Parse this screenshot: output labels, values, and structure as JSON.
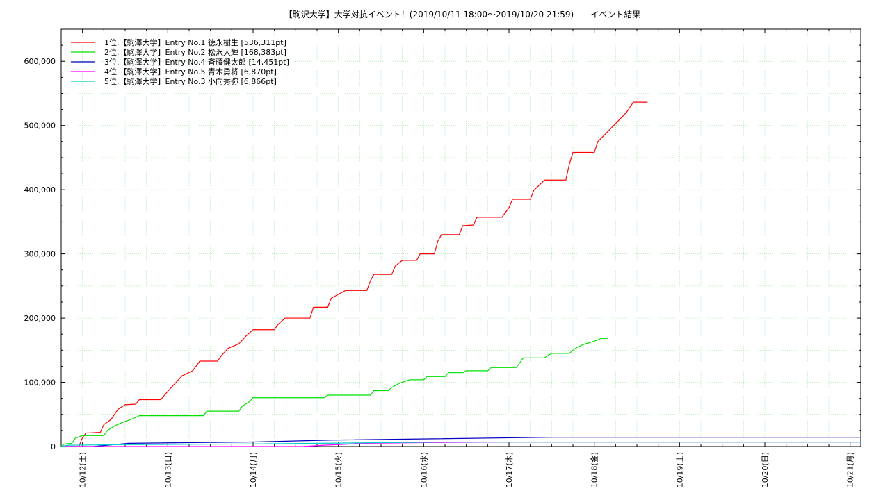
{
  "chart_data": {
    "type": "line",
    "title": "【駒沢大学】大学対抗イベント！(2019/10/11 18:00～2019/10/20 21:59)　　イベント結果",
    "xlabel": "",
    "ylabel": "",
    "x_ticks": [
      "10/12(土)",
      "10/13(日)",
      "10/14(月)",
      "10/15(火)",
      "10/16(水)",
      "10/17(木)",
      "10/18(金)",
      "10/19(土)",
      "10/20(日)",
      "10/21(月)"
    ],
    "y_ticks": [
      "0",
      "100,000",
      "200,000",
      "300,000",
      "400,000",
      "500,000",
      "600,000"
    ],
    "x_range": [
      "2019-10-11 18:00",
      "2019-10-21 03:00"
    ],
    "y_range": [
      0,
      650000
    ],
    "grid": true,
    "legend_position": "top-left",
    "series": [
      {
        "name": "1位.【駒澤大学】Entry No.1 徳永樹生 [536,311pt]",
        "color": "#ff0000",
        "points": [
          [
            "2019-10-11 18:00",
            0
          ],
          [
            "2019-10-11 23:00",
            0
          ],
          [
            "2019-10-12 00:00",
            14000
          ],
          [
            "2019-10-12 01:00",
            21000
          ],
          [
            "2019-10-12 05:00",
            22000
          ],
          [
            "2019-10-12 06:00",
            34000
          ],
          [
            "2019-10-12 08:00",
            42000
          ],
          [
            "2019-10-12 10:00",
            58000
          ],
          [
            "2019-10-12 12:00",
            65000
          ],
          [
            "2019-10-12 15:00",
            66000
          ],
          [
            "2019-10-12 16:00",
            73000
          ],
          [
            "2019-10-12 22:00",
            73000
          ],
          [
            "2019-10-13 00:00",
            86000
          ],
          [
            "2019-10-13 02:00",
            98000
          ],
          [
            "2019-10-13 04:00",
            110000
          ],
          [
            "2019-10-13 07:00",
            118000
          ],
          [
            "2019-10-13 09:00",
            133000
          ],
          [
            "2019-10-13 14:00",
            133000
          ],
          [
            "2019-10-13 15:00",
            141000
          ],
          [
            "2019-10-13 17:00",
            153000
          ],
          [
            "2019-10-13 20:00",
            160000
          ],
          [
            "2019-10-13 22:00",
            172000
          ],
          [
            "2019-10-14 00:00",
            182000
          ],
          [
            "2019-10-14 06:00",
            182000
          ],
          [
            "2019-10-14 07:00",
            190000
          ],
          [
            "2019-10-14 09:00",
            200000
          ],
          [
            "2019-10-14 16:00",
            200000
          ],
          [
            "2019-10-14 17:00",
            217000
          ],
          [
            "2019-10-14 21:00",
            217000
          ],
          [
            "2019-10-14 22:00",
            231000
          ],
          [
            "2019-10-15 02:00",
            243000
          ],
          [
            "2019-10-15 08:00",
            243000
          ],
          [
            "2019-10-15 09:00",
            258000
          ],
          [
            "2019-10-15 10:00",
            268000
          ],
          [
            "2019-10-15 15:00",
            268000
          ],
          [
            "2019-10-15 16:00",
            281000
          ],
          [
            "2019-10-15 18:00",
            290000
          ],
          [
            "2019-10-15 22:00",
            290000
          ],
          [
            "2019-10-15 23:00",
            300000
          ],
          [
            "2019-10-16 03:00",
            300000
          ],
          [
            "2019-10-16 04:00",
            320000
          ],
          [
            "2019-10-16 05:00",
            330000
          ],
          [
            "2019-10-16 10:00",
            330000
          ],
          [
            "2019-10-16 11:00",
            344000
          ],
          [
            "2019-10-16 14:00",
            345000
          ],
          [
            "2019-10-16 15:00",
            357000
          ],
          [
            "2019-10-16 22:00",
            357000
          ],
          [
            "2019-10-17 00:00",
            372000
          ],
          [
            "2019-10-17 01:00",
            385000
          ],
          [
            "2019-10-17 06:00",
            385000
          ],
          [
            "2019-10-17 07:00",
            399000
          ],
          [
            "2019-10-17 10:00",
            415000
          ],
          [
            "2019-10-17 16:00",
            415000
          ],
          [
            "2019-10-17 17:00",
            440000
          ],
          [
            "2019-10-17 18:00",
            458000
          ],
          [
            "2019-10-18 00:00",
            458000
          ],
          [
            "2019-10-18 01:00",
            475000
          ],
          [
            "2019-10-18 03:00",
            486000
          ],
          [
            "2019-10-18 06:00",
            503000
          ],
          [
            "2019-10-18 09:00",
            520000
          ],
          [
            "2019-10-18 11:00",
            536311
          ],
          [
            "2019-10-18 15:00",
            536311
          ]
        ]
      },
      {
        "name": "2位.【駒澤大学】Entry No.2 松沢大輝 [168,383pt]",
        "color": "#00e000",
        "points": [
          [
            "2019-10-11 18:00",
            0
          ],
          [
            "2019-10-11 19:00",
            4000
          ],
          [
            "2019-10-11 21:00",
            5000
          ],
          [
            "2019-10-11 22:00",
            13000
          ],
          [
            "2019-10-12 00:00",
            17000
          ],
          [
            "2019-10-12 06:00",
            17000
          ],
          [
            "2019-10-12 07:00",
            25000
          ],
          [
            "2019-10-12 09:00",
            32000
          ],
          [
            "2019-10-12 11:00",
            37000
          ],
          [
            "2019-10-12 14:00",
            43000
          ],
          [
            "2019-10-12 16:00",
            48000
          ],
          [
            "2019-10-13 10:00",
            48000
          ],
          [
            "2019-10-13 11:00",
            55000
          ],
          [
            "2019-10-13 20:00",
            55000
          ],
          [
            "2019-10-13 21:00",
            63000
          ],
          [
            "2019-10-13 23:00",
            70000
          ],
          [
            "2019-10-14 00:00",
            76000
          ],
          [
            "2019-10-14 20:00",
            76000
          ],
          [
            "2019-10-14 21:00",
            80000
          ],
          [
            "2019-10-15 09:00",
            80000
          ],
          [
            "2019-10-15 10:00",
            87000
          ],
          [
            "2019-10-15 14:00",
            87000
          ],
          [
            "2019-10-15 15:00",
            92000
          ],
          [
            "2019-10-15 17:00",
            98000
          ],
          [
            "2019-10-15 20:00",
            104000
          ],
          [
            "2019-10-16 00:00",
            104000
          ],
          [
            "2019-10-16 01:00",
            109000
          ],
          [
            "2019-10-16 06:00",
            109000
          ],
          [
            "2019-10-16 07:00",
            115000
          ],
          [
            "2019-10-16 11:00",
            115000
          ],
          [
            "2019-10-16 12:00",
            118000
          ],
          [
            "2019-10-16 18:00",
            118000
          ],
          [
            "2019-10-16 19:00",
            123000
          ],
          [
            "2019-10-17 02:00",
            123000
          ],
          [
            "2019-10-17 03:00",
            130000
          ],
          [
            "2019-10-17 04:00",
            138000
          ],
          [
            "2019-10-17 10:00",
            138000
          ],
          [
            "2019-10-17 11:00",
            142000
          ],
          [
            "2019-10-17 12:00",
            145000
          ],
          [
            "2019-10-17 17:00",
            145000
          ],
          [
            "2019-10-17 18:00",
            150000
          ],
          [
            "2019-10-17 19:00",
            154000
          ],
          [
            "2019-10-17 21:00",
            159000
          ],
          [
            "2019-10-18 00:00",
            164000
          ],
          [
            "2019-10-18 02:00",
            168383
          ],
          [
            "2019-10-18 04:00",
            168383
          ]
        ]
      },
      {
        "name": "3位.【駒澤大学】Entry No.4 斉藤健太郎 [14,451pt]",
        "color": "#0000c0",
        "points": [
          [
            "2019-10-11 18:00",
            0
          ],
          [
            "2019-10-12 03:00",
            0
          ],
          [
            "2019-10-12 07:00",
            2000
          ],
          [
            "2019-10-12 13:00",
            5000
          ],
          [
            "2019-10-14 00:00",
            7000
          ],
          [
            "2019-10-14 22:00",
            10000
          ],
          [
            "2019-10-16 03:00",
            12000
          ],
          [
            "2019-10-17 12:00",
            14451
          ],
          [
            "2019-10-21 03:00",
            14451
          ]
        ]
      },
      {
        "name": "4位.【駒澤大学】Entry No.5 青木勇将 [6,870pt]",
        "color": "#ff00ff",
        "points": [
          [
            "2019-10-11 18:00",
            0
          ],
          [
            "2019-10-14 14:00",
            0
          ],
          [
            "2019-10-14 20:00",
            2000
          ],
          [
            "2019-10-15 08:00",
            5000
          ],
          [
            "2019-10-16 00:00",
            6000
          ],
          [
            "2019-10-16 22:00",
            6870
          ],
          [
            "2019-10-21 03:00",
            6870
          ]
        ]
      },
      {
        "name": "5位.【駒澤大学】Entry No.3 小向秀弥 [6,866pt]",
        "color": "#00cccc",
        "points": [
          [
            "2019-10-11 18:00",
            0
          ],
          [
            "2019-10-11 20:00",
            2000
          ],
          [
            "2019-10-12 12:00",
            3000
          ],
          [
            "2019-10-13 23:00",
            4000
          ],
          [
            "2019-10-16 06:00",
            6866
          ],
          [
            "2019-10-21 03:00",
            6866
          ]
        ]
      }
    ]
  }
}
